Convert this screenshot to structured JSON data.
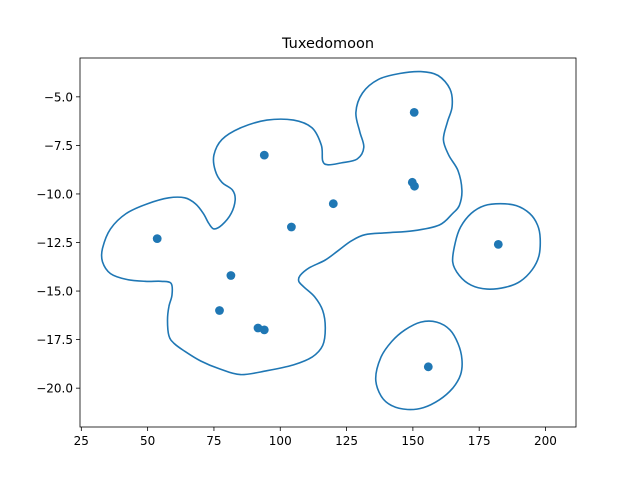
{
  "chart_data": {
    "type": "scatter",
    "title": "Tuxedomoon",
    "xlabel": "",
    "ylabel": "",
    "xlim": [
      24.5,
      211.5
    ],
    "ylim": [
      -22.0,
      -3.0
    ],
    "xticks": [
      25,
      50,
      75,
      100,
      125,
      150,
      175,
      200
    ],
    "yticks": [
      -5.0,
      -7.5,
      -10.0,
      -12.5,
      -15.0,
      -17.5,
      -20.0
    ],
    "xtick_labels": [
      "25",
      "50",
      "75",
      "100",
      "125",
      "150",
      "175",
      "200"
    ],
    "ytick_labels": [
      "−5.0",
      "−7.5",
      "−10.0",
      "−12.5",
      "−15.0",
      "−17.5",
      "−20.0"
    ],
    "grid": false,
    "color": "#1f77b4",
    "points": [
      {
        "x": 150.5,
        "y": -5.8
      },
      {
        "x": 94.0,
        "y": -8.0
      },
      {
        "x": 149.8,
        "y": -9.4
      },
      {
        "x": 150.6,
        "y": -9.6
      },
      {
        "x": 120.0,
        "y": -10.5
      },
      {
        "x": 104.2,
        "y": -11.7
      },
      {
        "x": 53.6,
        "y": -12.3
      },
      {
        "x": 182.2,
        "y": -12.6
      },
      {
        "x": 81.4,
        "y": -14.2
      },
      {
        "x": 77.1,
        "y": -16.0
      },
      {
        "x": 91.6,
        "y": -16.9
      },
      {
        "x": 94.0,
        "y": -17.0
      },
      {
        "x": 155.8,
        "y": -18.9
      }
    ],
    "contours": [
      [
        [
          33.0,
          -12.8
        ],
        [
          36.0,
          -11.8
        ],
        [
          42.0,
          -11.0
        ],
        [
          50.0,
          -10.5
        ],
        [
          58.0,
          -10.2
        ],
        [
          64.0,
          -10.2
        ],
        [
          68.0,
          -10.5
        ],
        [
          71.0,
          -11.0
        ],
        [
          73.0,
          -11.5
        ],
        [
          75.0,
          -11.8
        ],
        [
          78.0,
          -11.6
        ],
        [
          81.5,
          -11.0
        ],
        [
          83.0,
          -10.3
        ],
        [
          82.0,
          -9.8
        ],
        [
          78.0,
          -9.4
        ],
        [
          75.5,
          -8.8
        ],
        [
          75.0,
          -8.0
        ],
        [
          78.0,
          -7.2
        ],
        [
          85.0,
          -6.6
        ],
        [
          95.0,
          -6.2
        ],
        [
          105.0,
          -6.2
        ],
        [
          112.0,
          -6.6
        ],
        [
          115.5,
          -7.5
        ],
        [
          116.0,
          -8.3
        ],
        [
          118.0,
          -8.5
        ],
        [
          123.0,
          -8.4
        ],
        [
          129.0,
          -8.2
        ],
        [
          131.5,
          -7.6
        ],
        [
          130.0,
          -6.8
        ],
        [
          128.5,
          -5.8
        ],
        [
          131.0,
          -4.8
        ],
        [
          137.0,
          -4.1
        ],
        [
          145.0,
          -3.8
        ],
        [
          153.0,
          -3.7
        ],
        [
          159.5,
          -3.9
        ],
        [
          164.0,
          -4.6
        ],
        [
          164.8,
          -5.5
        ],
        [
          163.0,
          -6.3
        ],
        [
          161.5,
          -7.2
        ],
        [
          163.5,
          -8.0
        ],
        [
          167.0,
          -8.8
        ],
        [
          168.5,
          -9.8
        ],
        [
          167.5,
          -10.6
        ],
        [
          165.0,
          -11.0
        ],
        [
          160.0,
          -11.6
        ],
        [
          150.0,
          -11.9
        ],
        [
          140.0,
          -12.0
        ],
        [
          132.0,
          -12.1
        ],
        [
          127.0,
          -12.4
        ],
        [
          122.0,
          -12.9
        ],
        [
          117.0,
          -13.4
        ],
        [
          111.0,
          -13.8
        ],
        [
          107.5,
          -14.2
        ],
        [
          107.0,
          -14.5
        ],
        [
          109.0,
          -14.8
        ],
        [
          113.0,
          -15.3
        ],
        [
          116.0,
          -16.0
        ],
        [
          117.0,
          -16.9
        ],
        [
          116.0,
          -17.8
        ],
        [
          112.0,
          -18.4
        ],
        [
          105.0,
          -18.8
        ],
        [
          95.0,
          -19.1
        ],
        [
          85.0,
          -19.3
        ],
        [
          77.0,
          -19.0
        ],
        [
          70.0,
          -18.6
        ],
        [
          64.0,
          -18.1
        ],
        [
          60.0,
          -17.7
        ],
        [
          58.0,
          -17.3
        ],
        [
          57.5,
          -16.5
        ],
        [
          58.0,
          -15.8
        ],
        [
          59.2,
          -15.2
        ],
        [
          58.8,
          -14.6
        ],
        [
          55.0,
          -14.5
        ],
        [
          49.0,
          -14.5
        ],
        [
          42.0,
          -14.4
        ],
        [
          36.0,
          -14.1
        ],
        [
          33.0,
          -13.5
        ],
        [
          33.0,
          -12.8
        ]
      ],
      [
        [
          165.0,
          -13.5
        ],
        [
          166.0,
          -12.5
        ],
        [
          168.0,
          -11.7
        ],
        [
          172.0,
          -11.0
        ],
        [
          177.0,
          -10.6
        ],
        [
          183.0,
          -10.5
        ],
        [
          189.0,
          -10.6
        ],
        [
          194.0,
          -11.0
        ],
        [
          197.0,
          -11.6
        ],
        [
          198.0,
          -12.3
        ],
        [
          197.5,
          -13.2
        ],
        [
          195.0,
          -13.9
        ],
        [
          190.5,
          -14.5
        ],
        [
          185.0,
          -14.8
        ],
        [
          178.0,
          -14.9
        ],
        [
          172.0,
          -14.7
        ],
        [
          167.5,
          -14.2
        ],
        [
          165.0,
          -13.5
        ]
      ],
      [
        [
          136.0,
          -19.5
        ],
        [
          138.0,
          -18.4
        ],
        [
          142.0,
          -17.6
        ],
        [
          147.0,
          -17.0
        ],
        [
          153.0,
          -16.6
        ],
        [
          159.0,
          -16.6
        ],
        [
          164.0,
          -17.0
        ],
        [
          167.0,
          -17.7
        ],
        [
          168.5,
          -18.5
        ],
        [
          168.0,
          -19.3
        ],
        [
          165.0,
          -20.0
        ],
        [
          160.0,
          -20.6
        ],
        [
          154.0,
          -21.0
        ],
        [
          148.0,
          -21.1
        ],
        [
          142.0,
          -20.9
        ],
        [
          138.0,
          -20.4
        ],
        [
          136.0,
          -19.5
        ]
      ]
    ]
  }
}
